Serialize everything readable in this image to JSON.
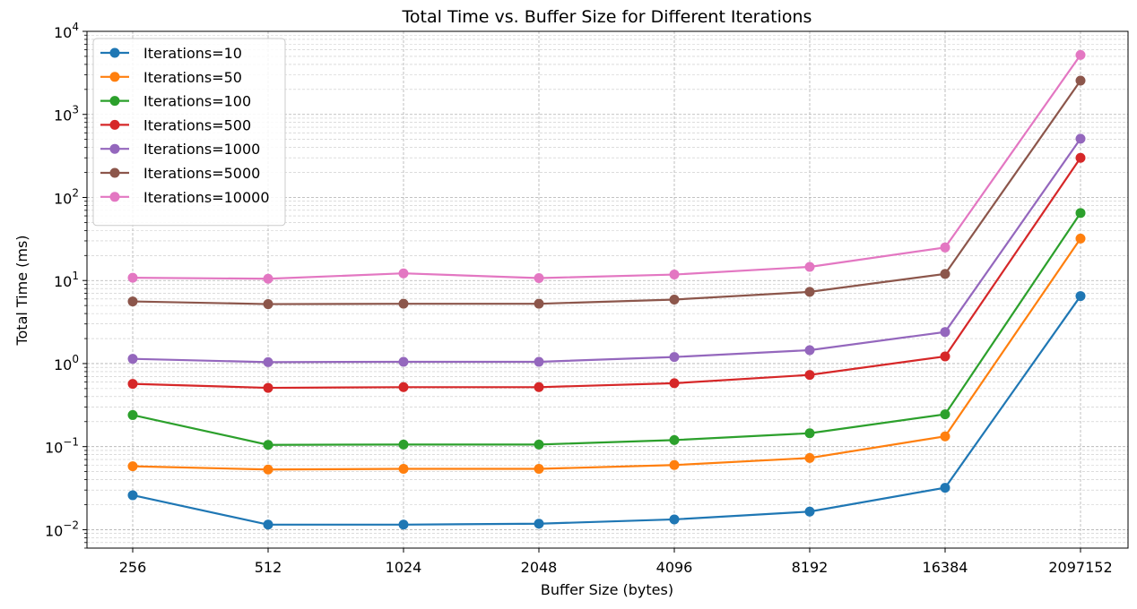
{
  "chart_data": {
    "type": "line",
    "title": "Total Time vs. Buffer Size for Different Iterations",
    "xlabel": "Buffer Size (bytes)",
    "ylabel": "Total Time (ms)",
    "yscale": "log",
    "ylim": [
      0.006,
      10000
    ],
    "grid": true,
    "legend_position": "top-left",
    "categories": [
      "256",
      "512",
      "1024",
      "2048",
      "4096",
      "8192",
      "16384",
      "2097152"
    ],
    "y_ticks": [
      {
        "value": 0.01,
        "mantissa": "10",
        "exponent": "−2"
      },
      {
        "value": 0.1,
        "mantissa": "10",
        "exponent": "−1"
      },
      {
        "value": 1,
        "mantissa": "10",
        "exponent": "0"
      },
      {
        "value": 10,
        "mantissa": "10",
        "exponent": "1"
      },
      {
        "value": 100,
        "mantissa": "10",
        "exponent": "2"
      },
      {
        "value": 1000,
        "mantissa": "10",
        "exponent": "3"
      },
      {
        "value": 10000,
        "mantissa": "10",
        "exponent": "4"
      }
    ],
    "series": [
      {
        "name": "Iterations=10",
        "color": "#1f77b4",
        "values": [
          0.026,
          0.0115,
          0.0115,
          0.0118,
          0.0133,
          0.0165,
          0.032,
          6.5
        ]
      },
      {
        "name": "Iterations=50",
        "color": "#ff7f0e",
        "values": [
          0.058,
          0.053,
          0.054,
          0.054,
          0.06,
          0.073,
          0.133,
          32
        ]
      },
      {
        "name": "Iterations=100",
        "color": "#2ca02c",
        "values": [
          0.24,
          0.105,
          0.106,
          0.106,
          0.12,
          0.145,
          0.245,
          65
        ]
      },
      {
        "name": "Iterations=500",
        "color": "#d62728",
        "values": [
          0.57,
          0.51,
          0.52,
          0.52,
          0.58,
          0.73,
          1.22,
          300
        ]
      },
      {
        "name": "Iterations=1000",
        "color": "#9467bd",
        "values": [
          1.14,
          1.04,
          1.05,
          1.05,
          1.2,
          1.45,
          2.4,
          510
        ]
      },
      {
        "name": "Iterations=5000",
        "color": "#8c564b",
        "values": [
          5.6,
          5.2,
          5.25,
          5.25,
          5.9,
          7.3,
          12,
          2550
        ]
      },
      {
        "name": "Iterations=10000",
        "color": "#e377c2",
        "values": [
          10.8,
          10.5,
          12.2,
          10.7,
          11.8,
          14.6,
          25,
          5200
        ]
      }
    ]
  }
}
